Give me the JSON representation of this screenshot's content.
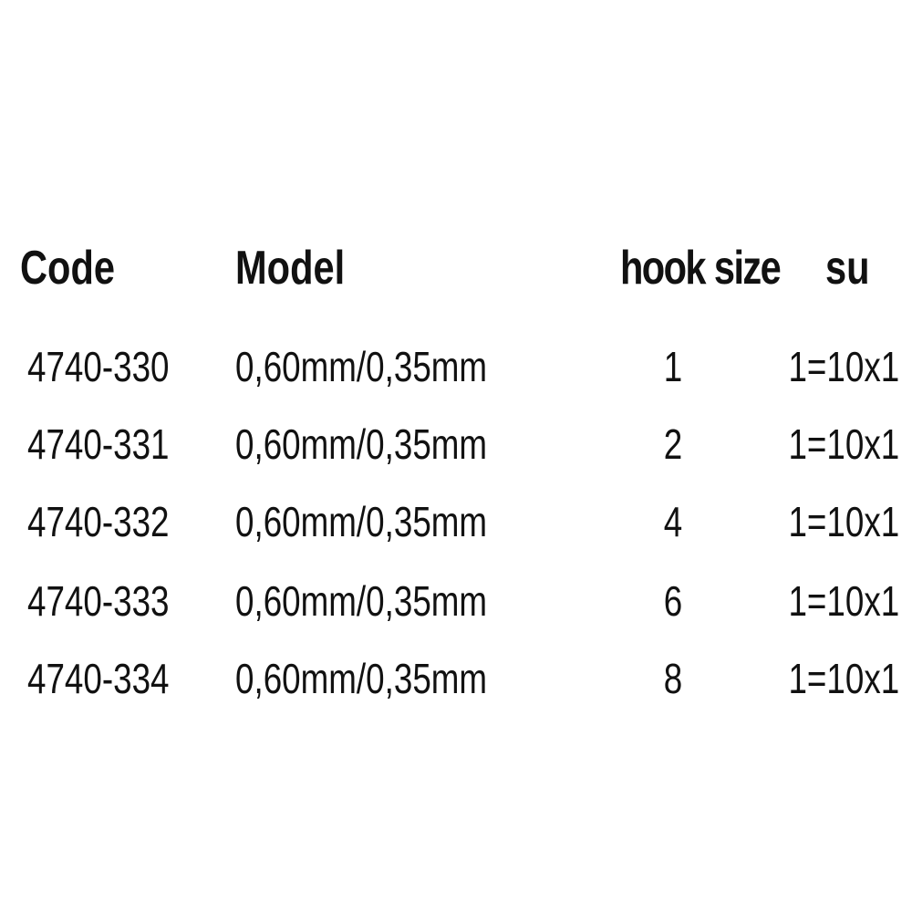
{
  "table": {
    "headers": [
      "Code",
      "Model",
      "hook size",
      "su"
    ],
    "rows": [
      {
        "code": "4740-330",
        "model": "0,60mm/0,35mm",
        "hook_size": "1",
        "su": "1=10x1"
      },
      {
        "code": "4740-331",
        "model": "0,60mm/0,35mm",
        "hook_size": "2",
        "su": "1=10x1"
      },
      {
        "code": "4740-332",
        "model": "0,60mm/0,35mm",
        "hook_size": "4",
        "su": "1=10x1"
      },
      {
        "code": "4740-333",
        "model": "0,60mm/0,35mm",
        "hook_size": "6",
        "su": "1=10x1"
      },
      {
        "code": "4740-334",
        "model": "0,60mm/0,35mm",
        "hook_size": "8",
        "su": "1=10x1"
      }
    ]
  }
}
